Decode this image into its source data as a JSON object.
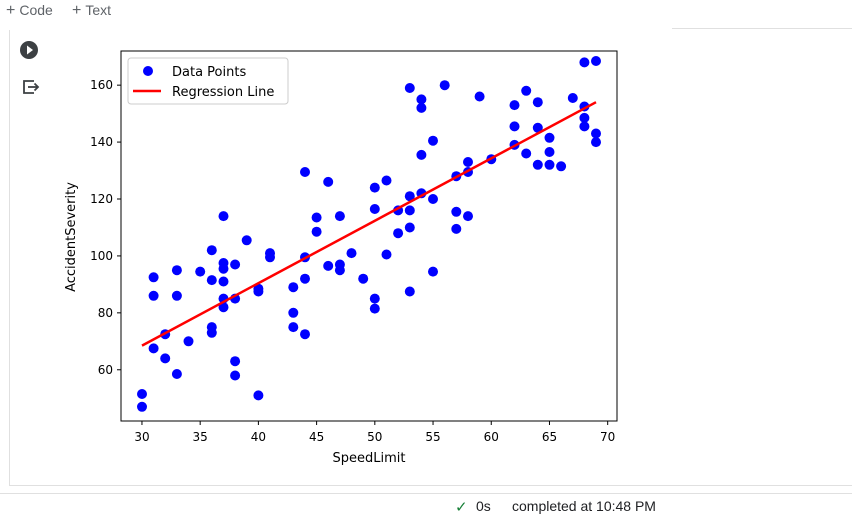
{
  "toolbar": {
    "code_label": "Code",
    "text_label": "Text",
    "plus_glyph": "+"
  },
  "cell": {
    "run_icon": "play-circle-icon",
    "output_icon": "output-redirect-icon"
  },
  "status": {
    "check_glyph": "✓",
    "duration": "0s",
    "message": "completed at 10:48 PM",
    "accent_color": "#188038"
  },
  "chart_data": {
    "type": "scatter",
    "xlabel": "SpeedLimit",
    "ylabel": "AccidentSeverity",
    "xlim": [
      28.2,
      70.8
    ],
    "ylim": [
      42,
      172
    ],
    "xticks": [
      30,
      35,
      40,
      45,
      50,
      55,
      60,
      65,
      70
    ],
    "yticks": [
      60,
      80,
      100,
      120,
      140,
      160
    ],
    "grid": false,
    "legend_placement": "top-left",
    "series": [
      {
        "name": "Data Points",
        "type": "scatter",
        "color": "#0000ff",
        "points": [
          [
            30,
            51.5
          ],
          [
            30,
            47
          ],
          [
            31,
            92.5
          ],
          [
            31,
            86
          ],
          [
            31,
            67.5
          ],
          [
            32,
            72.5
          ],
          [
            32,
            64
          ],
          [
            33,
            95
          ],
          [
            33,
            86
          ],
          [
            33,
            58.5
          ],
          [
            34,
            70
          ],
          [
            35,
            94.5
          ],
          [
            36,
            102
          ],
          [
            36,
            91.5
          ],
          [
            36,
            75
          ],
          [
            36,
            73
          ],
          [
            37,
            114
          ],
          [
            37,
            97.5
          ],
          [
            37,
            95.5
          ],
          [
            37,
            91
          ],
          [
            37,
            85
          ],
          [
            37,
            82
          ],
          [
            38,
            97
          ],
          [
            38,
            85
          ],
          [
            38,
            63
          ],
          [
            38,
            58
          ],
          [
            39,
            105.5
          ],
          [
            40,
            88.5
          ],
          [
            40,
            87.5
          ],
          [
            40,
            51
          ],
          [
            41,
            101
          ],
          [
            41,
            99.5
          ],
          [
            43,
            89
          ],
          [
            43,
            80
          ],
          [
            43,
            75
          ],
          [
            44,
            129.5
          ],
          [
            44,
            99.5
          ],
          [
            44,
            92
          ],
          [
            44,
            72.5
          ],
          [
            45,
            113.5
          ],
          [
            45,
            108.5
          ],
          [
            46,
            126
          ],
          [
            46,
            96.5
          ],
          [
            47,
            114
          ],
          [
            47,
            97
          ],
          [
            47,
            95
          ],
          [
            48,
            101
          ],
          [
            49,
            92
          ],
          [
            50,
            124
          ],
          [
            50,
            116.5
          ],
          [
            50,
            85
          ],
          [
            50,
            81.5
          ],
          [
            51,
            126.5
          ],
          [
            51,
            100.5
          ],
          [
            52,
            116
          ],
          [
            52,
            108
          ],
          [
            53,
            159
          ],
          [
            53,
            121
          ],
          [
            53,
            116
          ],
          [
            53,
            110
          ],
          [
            53,
            87.5
          ],
          [
            54,
            155
          ],
          [
            54,
            152
          ],
          [
            54,
            135.5
          ],
          [
            54,
            122
          ],
          [
            55,
            140.5
          ],
          [
            55,
            120
          ],
          [
            55,
            94.5
          ],
          [
            56,
            160
          ],
          [
            57,
            128
          ],
          [
            57,
            115.5
          ],
          [
            57,
            109.5
          ],
          [
            58,
            133
          ],
          [
            58,
            129.5
          ],
          [
            58,
            114
          ],
          [
            59,
            156
          ],
          [
            60,
            134
          ],
          [
            62,
            153
          ],
          [
            62,
            145.5
          ],
          [
            62,
            139
          ],
          [
            63,
            158
          ],
          [
            63,
            136
          ],
          [
            64,
            154
          ],
          [
            64,
            145
          ],
          [
            64,
            132
          ],
          [
            65,
            141.5
          ],
          [
            65,
            136.5
          ],
          [
            65,
            132
          ],
          [
            66,
            131.5
          ],
          [
            67,
            155.5
          ],
          [
            68,
            168
          ],
          [
            68,
            152.5
          ],
          [
            68,
            148.5
          ],
          [
            68,
            145.5
          ],
          [
            69,
            168.5
          ],
          [
            69,
            143
          ],
          [
            69,
            140
          ]
        ]
      },
      {
        "name": "Regression Line",
        "type": "line",
        "color": "#ff0000",
        "points": [
          [
            30,
            68.5
          ],
          [
            69,
            154
          ]
        ]
      }
    ]
  }
}
